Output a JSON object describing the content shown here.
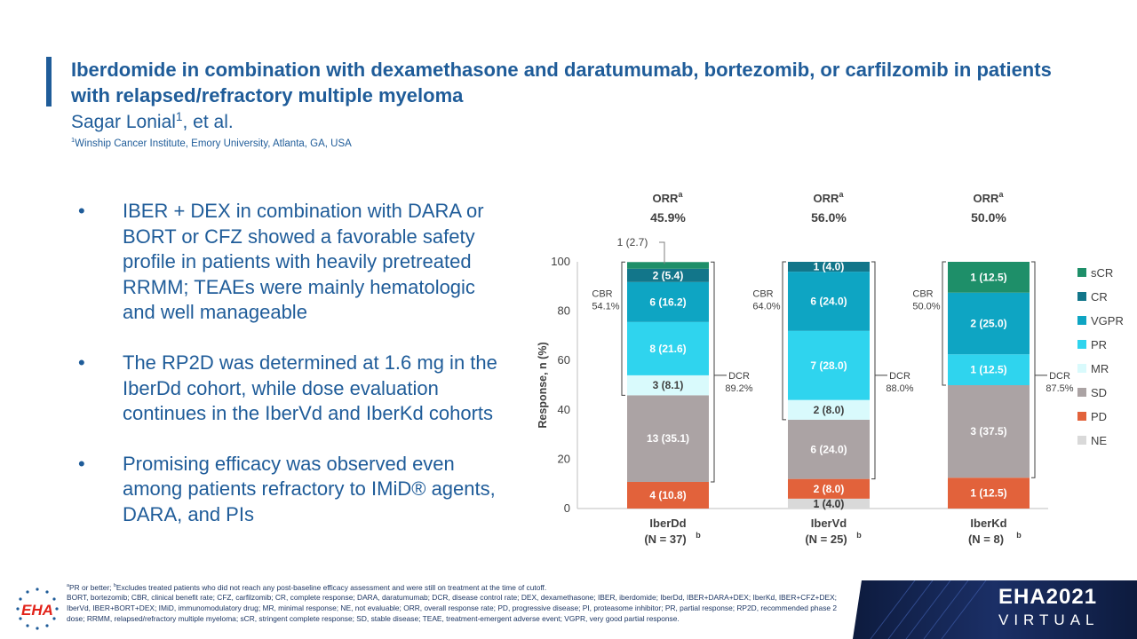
{
  "header": {
    "title": "Iberdomide in combination with dexamethasone and daratumumab, bortezomib, or carfilzomib in patients with relapsed/refractory multiple myeloma",
    "author": "Sagar Lonial",
    "author_sup": "1",
    "author_suffix": ", et al.",
    "affiliation_sup": "1",
    "affiliation": "Winship Cancer Institute, Emory University, Atlanta, GA, USA"
  },
  "bullets": [
    "IBER + DEX in combination with DARA or BORT or CFZ showed a favorable safety profile in patients with heavily pretreated RRMM; TEAEs were mainly hematologic and well manageable",
    "The RP2D was determined at 1.6 mg in the IberDd cohort, while dose evaluation continues in the IberVd and IberKd cohorts",
    "Promising efficacy was observed even among patients refractory to IMiD® agents, DARA, and PIs"
  ],
  "bullet_symbol": "•",
  "chart_data": {
    "type": "bar",
    "stacked": true,
    "ylabel": "Response, n (%)",
    "ylim": [
      0,
      100
    ],
    "yticks": [
      0,
      20,
      40,
      60,
      80,
      100
    ],
    "legend_position": "right",
    "categories": [
      "IberDd",
      "IberVd",
      "IberKd"
    ],
    "category_n": [
      "(N = 37)",
      "(N = 25)",
      "(N = 8)"
    ],
    "category_n_sup": "b",
    "orr_label": "ORR",
    "orr_sup": "a",
    "orr_values": [
      "45.9%",
      "56.0%",
      "50.0%"
    ],
    "series": [
      {
        "name": "NE",
        "color": "#d9d9d9",
        "values": [
          0,
          4.0,
          0
        ],
        "labels": [
          "",
          "1 (4.0)",
          ""
        ]
      },
      {
        "name": "PD",
        "color": "#e2623b",
        "values": [
          10.8,
          8.0,
          12.5
        ],
        "labels": [
          "4 (10.8)",
          "2 (8.0)",
          "1 (12.5)"
        ]
      },
      {
        "name": "SD",
        "color": "#aba3a4",
        "values": [
          35.1,
          24.0,
          37.5
        ],
        "labels": [
          "13 (35.1)",
          "6 (24.0)",
          "3 (37.5)"
        ]
      },
      {
        "name": "MR",
        "color": "#d9fafc",
        "values": [
          8.1,
          8.0,
          0
        ],
        "labels": [
          "3 (8.1)",
          "2 (8.0)",
          ""
        ]
      },
      {
        "name": "PR",
        "color": "#2fd4ee",
        "values": [
          21.6,
          28.0,
          12.5
        ],
        "labels": [
          "8 (21.6)",
          "7 (28.0)",
          "1 (12.5)"
        ]
      },
      {
        "name": "VGPR",
        "color": "#0ea5c3",
        "values": [
          16.2,
          24.0,
          25.0
        ],
        "labels": [
          "6 (16.2)",
          "6 (24.0)",
          "2 (25.0)"
        ]
      },
      {
        "name": "CR",
        "color": "#12768a",
        "values": [
          5.4,
          4.0,
          0
        ],
        "labels": [
          "2 (5.4)",
          "1 (4.0)",
          ""
        ]
      },
      {
        "name": "sCR",
        "color": "#1e8f69",
        "values": [
          2.7,
          0,
          12.5
        ],
        "labels": [
          "1 (2.7)",
          "",
          "1 (12.5)"
        ]
      }
    ],
    "legend_order": [
      "sCR",
      "CR",
      "VGPR",
      "PR",
      "MR",
      "SD",
      "PD",
      "NE"
    ],
    "cbr": {
      "label": "CBR",
      "values": [
        "54.1%",
        "64.0%",
        "50.0%"
      ]
    },
    "dcr": {
      "label": "DCR",
      "values": [
        "89.2%",
        "88.0%",
        "87.5%"
      ]
    }
  },
  "footnote": {
    "line1_sup_a": "a",
    "line1_a": "PR or better; ",
    "line1_sup_b": "b",
    "line1_b": "Excludes treated patients who did not reach any post-baseline efficacy assessment and were still on treatment at the time of cutoff.",
    "abbreviations": "BORT, bortezomib; CBR, clinical benefit rate; CFZ, carfilzomib; CR, complete response; DARA, daratumumab; DCR, disease control rate; DEX, dexamethasone; IBER, iberdomide; IberDd, IBER+DARA+DEX; IberKd, IBER+CFZ+DEX; IberVd, IBER+BORT+DEX; IMiD, immunomodulatory drug; MR, minimal response; NE, not evaluable; ORR, overall response rate; PD, progressive disease; PI, proteasome inhibitor; PR, partial response; RP2D, recommended phase 2 dose; RRMM, relapsed/refractory multiple myeloma; sCR, stringent complete response; SD, stable disease; TEAE, treatment-emergent adverse event; VGPR, very good partial response."
  },
  "logo": {
    "text": "EHA"
  },
  "banner": {
    "line1": "EHA2021",
    "line2": "VIRTUAL"
  }
}
